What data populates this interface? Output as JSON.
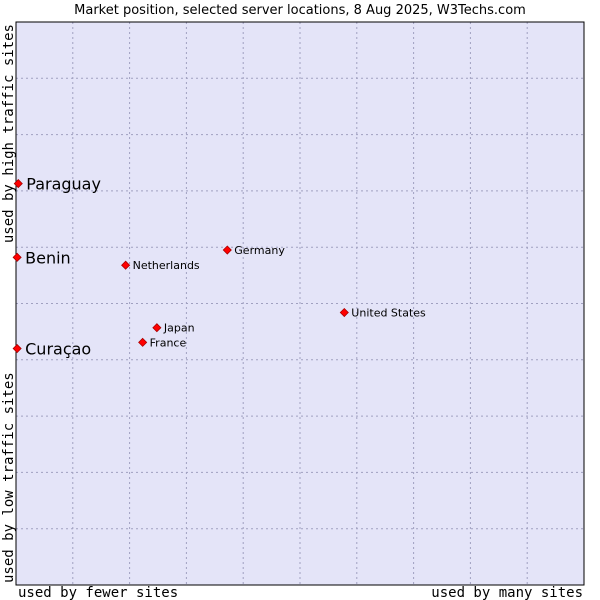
{
  "chart_data": {
    "type": "scatter",
    "title": "Market position, selected server locations, 8 Aug 2025, W3Techs.com",
    "xlabel_left": "used by fewer sites",
    "xlabel_right": "used by many sites",
    "ylabel_bottom": "used by low traffic sites",
    "ylabel_top": "used by high traffic sites",
    "xlim": [
      0,
      100
    ],
    "ylim": [
      0,
      100
    ],
    "grid": true,
    "colors": {
      "background": "#e4e4f8",
      "point": "#ff0000",
      "point_edge": "#aa0000",
      "grid": "#a0a0c0"
    },
    "points": [
      {
        "name": "Paraguay",
        "x": 0.4,
        "y": 71.3,
        "emphasis": true
      },
      {
        "name": "Benin",
        "x": 0.2,
        "y": 58.2,
        "emphasis": true
      },
      {
        "name": "Curaçao",
        "x": 0.2,
        "y": 42.0,
        "emphasis": true
      },
      {
        "name": "Netherlands",
        "x": 19.3,
        "y": 56.8,
        "emphasis": false
      },
      {
        "name": "Germany",
        "x": 37.2,
        "y": 59.5,
        "emphasis": false
      },
      {
        "name": "United States",
        "x": 57.8,
        "y": 48.4,
        "emphasis": false
      },
      {
        "name": "Japan",
        "x": 24.8,
        "y": 45.7,
        "emphasis": false
      },
      {
        "name": "France",
        "x": 22.3,
        "y": 43.1,
        "emphasis": false
      }
    ]
  }
}
